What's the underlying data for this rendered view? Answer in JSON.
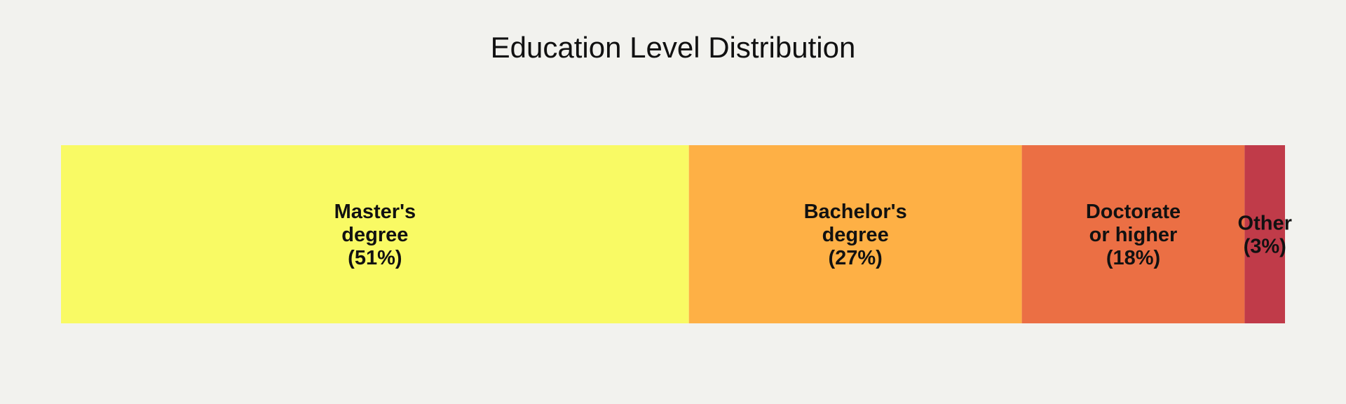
{
  "chart_data": {
    "type": "bar",
    "orientation": "horizontal-stacked",
    "title": "Education Level Distribution",
    "xlabel": "",
    "ylabel": "",
    "grid": false,
    "legend": "none",
    "total": 100,
    "segments": [
      {
        "category": "Master's degree",
        "value": 51.3,
        "label_lines": [
          "Master's",
          "degree",
          "(51%)"
        ],
        "color": "#f9fa64"
      },
      {
        "category": "Bachelor's degree",
        "value": 27.2,
        "label_lines": [
          "Bachelor's",
          "degree",
          "(27%)"
        ],
        "color": "#feb045"
      },
      {
        "category": "Doctorate or higher",
        "value": 18.2,
        "label_lines": [
          "Doctorate",
          "or higher",
          "(18%)"
        ],
        "color": "#eb6f44"
      },
      {
        "category": "Other",
        "value": 3.3,
        "label_lines": [
          "Other",
          "(3%)"
        ],
        "color": "#c03b49"
      }
    ],
    "background_color": "#f2f2ee"
  }
}
